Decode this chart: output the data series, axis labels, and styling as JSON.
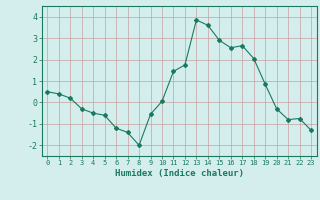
{
  "x": [
    0,
    1,
    2,
    3,
    4,
    5,
    6,
    7,
    8,
    9,
    10,
    11,
    12,
    13,
    14,
    15,
    16,
    17,
    18,
    19,
    20,
    21,
    22,
    23
  ],
  "y": [
    0.5,
    0.4,
    0.2,
    -0.3,
    -0.5,
    -0.6,
    -1.2,
    -1.4,
    -2.0,
    -0.55,
    0.05,
    1.45,
    1.75,
    3.85,
    3.6,
    2.9,
    2.55,
    2.65,
    2.05,
    0.85,
    -0.3,
    -0.8,
    -0.75,
    -1.3
  ],
  "xlabel": "Humidex (Indice chaleur)",
  "xlim": [
    -0.5,
    23.5
  ],
  "ylim": [
    -2.5,
    4.5
  ],
  "yticks": [
    -2,
    -1,
    0,
    1,
    2,
    3,
    4
  ],
  "xticks": [
    0,
    1,
    2,
    3,
    4,
    5,
    6,
    7,
    8,
    9,
    10,
    11,
    12,
    13,
    14,
    15,
    16,
    17,
    18,
    19,
    20,
    21,
    22,
    23
  ],
  "line_color": "#1a7a5e",
  "marker": "D",
  "marker_size": 2,
  "bg_color": "#d4eeee",
  "grid_color": "#c8a0a0",
  "axis_color": "#1a7a5e",
  "label_color": "#1a7a5e",
  "tick_color": "#1a7a5e"
}
